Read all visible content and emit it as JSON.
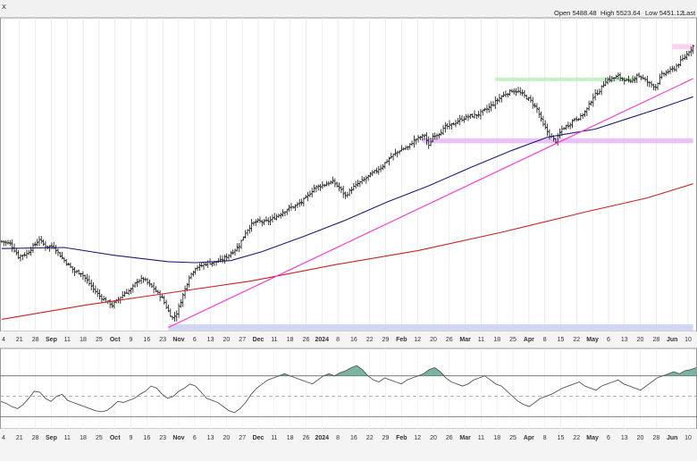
{
  "header": {
    "symbol_fragment": "X",
    "ohlc": [
      {
        "label": "Open",
        "value": "5488.48"
      },
      {
        "label": "High",
        "value": "5523.64"
      },
      {
        "label": "Low",
        "value": "5451.12"
      },
      {
        "label": "Last",
        "value": ""
      }
    ]
  },
  "chart_data": [
    {
      "type": "ohlc",
      "panel": "price",
      "title": "",
      "x_tick_labels": [
        "4",
        "21",
        "28",
        "Sep",
        "11",
        "18",
        "25",
        "Oct",
        "9",
        "16",
        "23",
        "Nov",
        "6",
        "13",
        "20",
        "27",
        "Dec",
        "11",
        "18",
        "26",
        "2024",
        "8",
        "16",
        "22",
        "29",
        "Feb",
        "12",
        "20",
        "26",
        "Mar",
        "11",
        "18",
        "25",
        "Apr",
        "8",
        "15",
        "22",
        "May",
        "6",
        "13",
        "20",
        "28",
        "Jun",
        "10"
      ],
      "bold_tick_labels": [
        "Sep",
        "Oct",
        "Nov",
        "Dec",
        "2024",
        "Feb",
        "Mar",
        "Apr",
        "May",
        "Jun"
      ],
      "bottom_tick_labels": [
        "4",
        "21",
        "28",
        "Sep",
        "11",
        "18",
        "25",
        "Oct",
        "9",
        "16",
        "23",
        "Nov",
        "6",
        "13",
        "20",
        "27",
        "Dec",
        "11",
        "18",
        "26",
        "2024",
        "8",
        "16",
        "22",
        "29",
        "Feb",
        "12",
        "20",
        "26",
        "Mar",
        "11",
        "18",
        "25",
        "Apr",
        "8",
        "15",
        "22",
        "May",
        "6",
        "13",
        "20",
        "28",
        "Jun",
        "10"
      ],
      "ylim": [
        4050,
        5600
      ],
      "close_path": [
        [
          0,
          4495
        ],
        [
          4,
          4485
        ],
        [
          8,
          4420
        ],
        [
          12,
          4435
        ],
        [
          15,
          4470
        ],
        [
          18,
          4505
        ],
        [
          21,
          4470
        ],
        [
          25,
          4470
        ],
        [
          28,
          4425
        ],
        [
          31,
          4390
        ],
        [
          35,
          4345
        ],
        [
          38,
          4340
        ],
        [
          41,
          4300
        ],
        [
          44,
          4260
        ],
        [
          47,
          4225
        ],
        [
          50,
          4200
        ],
        [
          53,
          4180
        ],
        [
          56,
          4210
        ],
        [
          59,
          4240
        ],
        [
          62,
          4255
        ],
        [
          65,
          4300
        ],
        [
          68,
          4310
        ],
        [
          71,
          4280
        ],
        [
          74,
          4250
        ],
        [
          77,
          4215
        ],
        [
          80,
          4150
        ],
        [
          82,
          4115
        ],
        [
          84,
          4140
        ],
        [
          86,
          4200
        ],
        [
          88,
          4260
        ],
        [
          90,
          4320
        ],
        [
          93,
          4365
        ],
        [
          96,
          4375
        ],
        [
          99,
          4390
        ],
        [
          102,
          4390
        ],
        [
          105,
          4400
        ],
        [
          108,
          4420
        ],
        [
          111,
          4445
        ],
        [
          114,
          4475
        ],
        [
          117,
          4540
        ],
        [
          120,
          4580
        ],
        [
          123,
          4595
        ],
        [
          126,
          4590
        ],
        [
          129,
          4600
        ],
        [
          132,
          4620
        ],
        [
          135,
          4640
        ],
        [
          138,
          4660
        ],
        [
          141,
          4670
        ],
        [
          144,
          4690
        ],
        [
          147,
          4720
        ],
        [
          150,
          4760
        ],
        [
          153,
          4770
        ],
        [
          156,
          4780
        ],
        [
          159,
          4790
        ],
        [
          162,
          4760
        ],
        [
          165,
          4720
        ],
        [
          168,
          4755
        ],
        [
          171,
          4780
        ],
        [
          174,
          4800
        ],
        [
          177,
          4825
        ],
        [
          180,
          4845
        ],
        [
          183,
          4870
        ],
        [
          186,
          4905
        ],
        [
          189,
          4930
        ],
        [
          192,
          4950
        ],
        [
          195,
          4960
        ],
        [
          198,
          4995
        ],
        [
          201,
          5010
        ],
        [
          203,
          5020
        ],
        [
          205,
          4965
        ],
        [
          207,
          5015
        ],
        [
          210,
          5030
        ],
        [
          213,
          5060
        ],
        [
          216,
          5070
        ],
        [
          219,
          5090
        ],
        [
          222,
          5105
        ],
        [
          225,
          5115
        ],
        [
          228,
          5120
        ],
        [
          230,
          5130
        ],
        [
          233,
          5150
        ],
        [
          236,
          5175
        ],
        [
          239,
          5205
        ],
        [
          242,
          5225
        ],
        [
          245,
          5240
        ],
        [
          248,
          5235
        ],
        [
          251,
          5215
        ],
        [
          254,
          5190
        ],
        [
          257,
          5150
        ],
        [
          260,
          5070
        ],
        [
          263,
          5020
        ],
        [
          266,
          4990
        ],
        [
          269,
          5050
        ],
        [
          272,
          5070
        ],
        [
          275,
          5100
        ],
        [
          278,
          5110
        ],
        [
          281,
          5150
        ],
        [
          284,
          5210
        ],
        [
          287,
          5240
        ],
        [
          290,
          5290
        ],
        [
          293,
          5300
        ],
        [
          296,
          5310
        ],
        [
          299,
          5295
        ],
        [
          302,
          5280
        ],
        [
          305,
          5320
        ],
        [
          308,
          5300
        ],
        [
          311,
          5275
        ],
        [
          314,
          5260
        ],
        [
          317,
          5320
        ],
        [
          320,
          5335
        ],
        [
          323,
          5350
        ],
        [
          326,
          5385
        ],
        [
          329,
          5420
        ],
        [
          332,
          5460
        ]
      ],
      "overlays": [
        {
          "kind": "line",
          "color": "#1c1c7a",
          "points": [
            [
              0,
              4460
            ],
            [
              30,
              4465
            ],
            [
              55,
              4425
            ],
            [
              80,
              4395
            ],
            [
              93,
              4390
            ],
            [
              110,
              4400
            ],
            [
              125,
              4445
            ],
            [
              145,
              4520
            ],
            [
              165,
              4600
            ],
            [
              185,
              4690
            ],
            [
              205,
              4770
            ],
            [
              225,
              4860
            ],
            [
              245,
              4945
            ],
            [
              262,
              5010
            ],
            [
              285,
              5050
            ],
            [
              300,
              5100
            ],
            [
              318,
              5160
            ],
            [
              332,
              5210
            ]
          ]
        },
        {
          "kind": "line",
          "color": "#cc2222",
          "points": [
            [
              0,
              4110
            ],
            [
              40,
              4180
            ],
            [
              80,
              4240
            ],
            [
              120,
              4300
            ],
            [
              160,
              4380
            ],
            [
              200,
              4450
            ],
            [
              240,
              4540
            ],
            [
              280,
              4640
            ],
            [
              310,
              4710
            ],
            [
              332,
              4780
            ]
          ]
        },
        {
          "kind": "line",
          "color": "#ff33cc",
          "points": [
            [
              80,
              4070
            ],
            [
              332,
              5300
            ]
          ]
        },
        {
          "kind": "band",
          "color": "#bbeebb",
          "range": [
            5290,
            5305
          ],
          "x_range": [
            237,
            305
          ]
        },
        {
          "kind": "band",
          "color": "#e6b8f5",
          "range": [
            4980,
            5005
          ],
          "x_range": [
            202,
            332
          ]
        },
        {
          "kind": "band",
          "color": "#c9cff2",
          "range": [
            4055,
            4085
          ],
          "x_range": [
            80,
            332
          ]
        },
        {
          "kind": "band",
          "color": "#ffc8ec",
          "range": [
            5445,
            5470
          ],
          "x_range": [
            322,
            332
          ]
        }
      ]
    },
    {
      "type": "line",
      "panel": "oscillator",
      "title": "",
      "ylim": [
        20,
        95
      ],
      "reference_lines": [
        70,
        50,
        30
      ],
      "values": [
        45,
        43,
        40,
        38,
        42,
        48,
        55,
        54,
        48,
        45,
        50,
        52,
        46,
        44,
        42,
        40,
        38,
        36,
        35,
        36,
        40,
        45,
        44,
        46,
        48,
        52,
        55,
        60,
        58,
        52,
        48,
        50,
        55,
        58,
        62,
        60,
        54,
        48,
        46,
        44,
        40,
        36,
        34,
        38,
        44,
        52,
        58,
        62,
        66,
        68,
        70,
        72,
        70,
        68,
        66,
        64,
        62,
        66,
        70,
        72,
        70,
        73,
        75,
        78,
        80,
        76,
        70,
        66,
        64,
        68,
        66,
        64,
        62,
        66,
        68,
        70,
        72,
        76,
        78,
        74,
        68,
        64,
        62,
        60,
        62,
        66,
        68,
        70,
        66,
        62,
        60,
        55,
        50,
        45,
        42,
        40,
        44,
        48,
        50,
        52,
        55,
        58,
        60,
        62,
        64,
        60,
        58,
        56,
        60,
        62,
        64,
        66,
        62,
        60,
        58,
        56,
        60,
        64,
        68,
        70,
        72,
        74,
        72,
        75,
        76,
        78
      ]
    }
  ]
}
